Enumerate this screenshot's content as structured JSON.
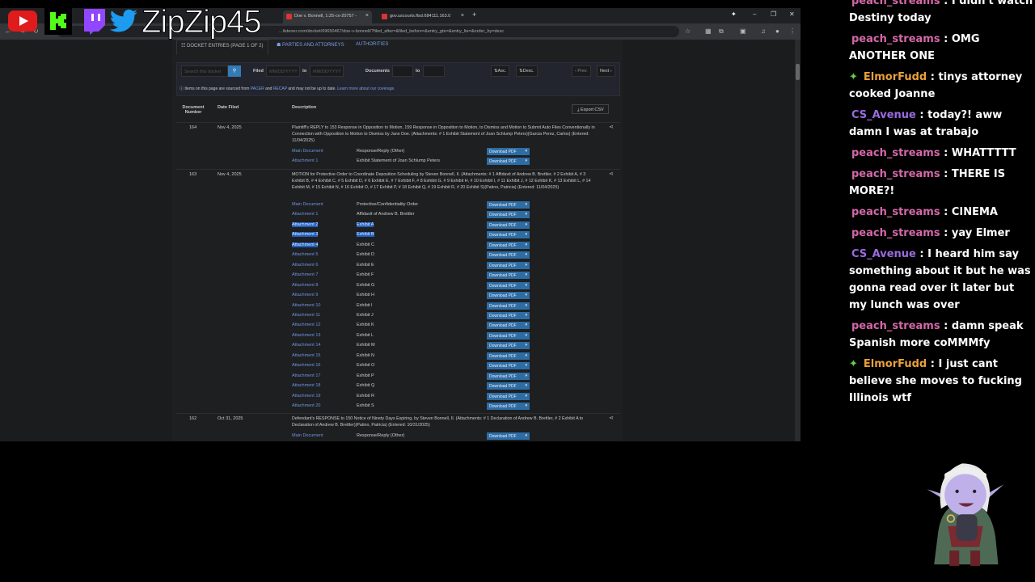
{
  "browser": {
    "tabs": [
      {
        "label": "Doe v. Bonnell, 1:25-cv-20757 -",
        "active": true
      },
      {
        "label": "gov.uscourts.flsd.684111.163.0",
        "active": false
      }
    ],
    "url": "...listener.com/docket/69650467/doe-v-bonnell/?filed_after=&filed_before=&entry_gte=&entry_lte=&order_by=desc"
  },
  "overlay": {
    "channel": "ZipZip45",
    "icons": [
      "youtube-icon",
      "kick-icon",
      "twitch-icon",
      "twitter-icon"
    ]
  },
  "docket": {
    "tabs": {
      "entries": "DOCKET ENTRIES (PAGE 1 OF 2)",
      "parties": "PARTIES AND ATTORNEYS",
      "authorities": "AUTHORITIES"
    },
    "filters": {
      "search_placeholder": "Search this docket",
      "filed_label": "Filed",
      "date_placeholder": "MM/DD/YYYY",
      "to": "to",
      "documents_label": "Documents",
      "asc": "Asc.",
      "desc": "Desc.",
      "prev": "‹ Prev.",
      "next": "Next ›"
    },
    "note": {
      "pre": "Items on this page are sourced from",
      "pacer": "PACER",
      "and": "and",
      "recap": "RECAP",
      "post": "and may not be up to date.",
      "link": "Learn more about our coverage."
    },
    "headers": {
      "number": "Document Number",
      "date": "Date Filed",
      "description": "Description",
      "export": "Export CSV"
    },
    "download_label": "Download PDF",
    "entries": [
      {
        "number": "164",
        "date": "Nov 4, 2025",
        "description": "Plaintiff's REPLY to 153 Response in Opposition to Motion, 159 Response in Opposition to Motion, to Dismiss and Motion to Submit Auto Files Conventionally in Connection with Opposition to Motion to Dismiss by Jane Doe. (Attachments: # 1 Exhibit Statement of Joan Schlump Peters)(Garcia Perez, Carlos) (Entered: 11/04/2025)",
        "documents": [
          {
            "name": "Main Document",
            "desc": "Response/Reply (Other)"
          },
          {
            "name": "Attachment 1",
            "desc": "Exhibit Statement of Joan Schlump Peters"
          }
        ]
      },
      {
        "number": "163",
        "date": "Nov 4, 2025",
        "description": "MOTION for Protective Order to Coordinate Deposition Scheduling by Steven Bonnell, II. (Attachments: # 1 Affidavit of Andrew B. Brettler, # 2 Exhibit A, # 3 Exhibit B, # 4 Exhibit C, # 5 Exhibit D, # 6 Exhibit E, # 7 Exhibit F, # 8 Exhibit G, # 9 Exhibit H, # 10 Exhibit I, # 11 Exhibit J, # 12 Exhibit K, # 13 Exhibit L, # 14 Exhibit M, # 15 Exhibit N, # 16 Exhibit O, # 17 Exhibit P, # 18 Exhibit Q, # 19 Exhibit R, # 20 Exhibit S)(Patino, Patricia) (Entered: 11/04/2025)",
        "documents": [
          {
            "name": "Main Document",
            "desc": "Protective/Confidentiality Order"
          },
          {
            "name": "Attachment 1",
            "desc": "Affidavit of Andrew B. Brettler"
          },
          {
            "name": "Attachment 2",
            "desc": "Exhibit A",
            "selected": "both"
          },
          {
            "name": "Attachment 3",
            "desc": "Exhibit B",
            "selected": "both"
          },
          {
            "name": "Attachment 4",
            "desc": "Exhibit C",
            "selected": "name"
          },
          {
            "name": "Attachment 5",
            "desc": "Exhibit D"
          },
          {
            "name": "Attachment 6",
            "desc": "Exhibit E"
          },
          {
            "name": "Attachment 7",
            "desc": "Exhibit F"
          },
          {
            "name": "Attachment 8",
            "desc": "Exhibit G"
          },
          {
            "name": "Attachment 9",
            "desc": "Exhibit H"
          },
          {
            "name": "Attachment 10",
            "desc": "Exhibit I"
          },
          {
            "name": "Attachment 11",
            "desc": "Exhibit J"
          },
          {
            "name": "Attachment 12",
            "desc": "Exhibit K"
          },
          {
            "name": "Attachment 13",
            "desc": "Exhibit L"
          },
          {
            "name": "Attachment 14",
            "desc": "Exhibit M"
          },
          {
            "name": "Attachment 15",
            "desc": "Exhibit N"
          },
          {
            "name": "Attachment 16",
            "desc": "Exhibit O"
          },
          {
            "name": "Attachment 17",
            "desc": "Exhibit P"
          },
          {
            "name": "Attachment 18",
            "desc": "Exhibit Q"
          },
          {
            "name": "Attachment 19",
            "desc": "Exhibit R"
          },
          {
            "name": "Attachment 20",
            "desc": "Exhibit S"
          }
        ]
      },
      {
        "number": "162",
        "date": "Oct 31, 2025",
        "description": "Defendant's RESPONSE to 150 Notice of Ninety Days Expiring, by Steven Bonnell, II. (Attachments: # 1 Declaration of Andrew B. Brettler, # 2 Exhibit A to Declaration of Andrew B. Brettler)(Patino, Patricia) (Entered: 10/31/2025)",
        "documents": [
          {
            "name": "Main Document",
            "desc": "Response/Reply (Other)"
          }
        ]
      }
    ]
  },
  "chat": {
    "colors": {
      "peach_streams": "#d468a8",
      "ElmorFudd": "#e8a03a",
      "CS_Avenue": "#9b6be0"
    },
    "messages": [
      {
        "user": "peach_streams",
        "text": "I didn't watch Destiny today",
        "badge": false
      },
      {
        "user": "peach_streams",
        "text": "OMG ANOTHER ONE",
        "badge": false
      },
      {
        "user": "ElmorFudd",
        "text": "tinys attorney cooked Joanne",
        "badge": true
      },
      {
        "user": "CS_Avenue",
        "text": "today?! aww damn I was at trabajo",
        "badge": false
      },
      {
        "user": "peach_streams",
        "text": "WHATTTTT",
        "badge": false
      },
      {
        "user": "peach_streams",
        "text": "THERE IS MORE?!",
        "badge": false
      },
      {
        "user": "peach_streams",
        "text": "CINEMA",
        "badge": false
      },
      {
        "user": "peach_streams",
        "text": "yay Elmer",
        "badge": false
      },
      {
        "user": "CS_Avenue",
        "text": "I heard him say something about it but he was gonna read over it later but my lunch was over",
        "badge": false
      },
      {
        "user": "peach_streams",
        "text": "damn speak Spanish more coMMMfy",
        "badge": false
      },
      {
        "user": "ElmorFudd",
        "text": "I just cant believe she moves to fucking Illinois wtf",
        "badge": true
      }
    ]
  }
}
